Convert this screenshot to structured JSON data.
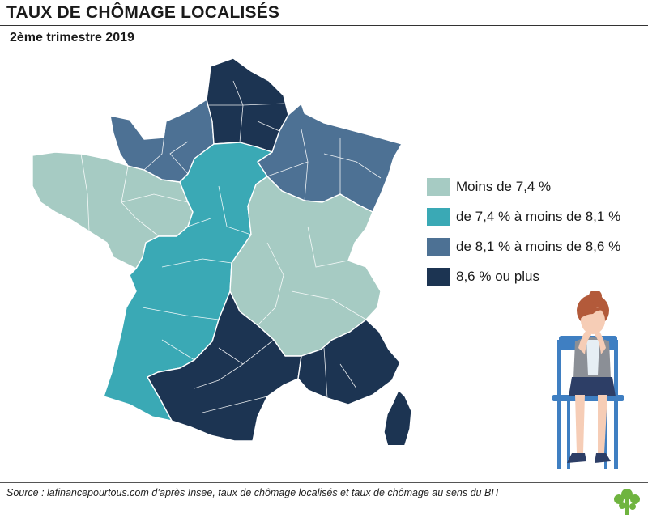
{
  "header": {
    "title": "TAUX DE CHÔMAGE LOCALISÉS",
    "subtitle": "2ème trimestre 2019"
  },
  "legend": {
    "items": [
      {
        "label": "Moins de 7,4 %",
        "color": "#a6cbc3"
      },
      {
        "label": "de 7,4 % à moins de 8,1 %",
        "color": "#3aa9b5"
      },
      {
        "label": "de 8,1 % à moins de 8,6 %",
        "color": "#4d7194"
      },
      {
        "label": "8,6 % ou plus",
        "color": "#1c3452"
      }
    ]
  },
  "map": {
    "region": "France métropolitaine",
    "zones": [
      {
        "area": "Hauts-de-France",
        "class": 3
      },
      {
        "area": "Normandie",
        "class": 2
      },
      {
        "area": "Grand Est",
        "class": 2
      },
      {
        "area": "Bretagne",
        "class": 0
      },
      {
        "area": "Pays de la Loire",
        "class": 0
      },
      {
        "area": "Centre / Nouvelle-Aquitaine ouest",
        "class": 1
      },
      {
        "area": "Bourgogne / Auvergne-Rhône-Alpes",
        "class": 0
      },
      {
        "area": "Occitanie",
        "class": 3
      },
      {
        "area": "Provence-Alpes-Côte d'Azur",
        "class": 3
      },
      {
        "area": "Corse",
        "class": 3
      }
    ]
  },
  "footer": {
    "source": "Source : lafinancepourtous.com d’après Insee, taux de chômage localisés et taux de chômage au sens du BIT"
  },
  "colors": {
    "border": "#ffffff",
    "skin": "#f6cdb6",
    "hair": "#b35a3a",
    "chair": "#3f7fc2",
    "vest": "#8b8f96",
    "shirt": "#e6eef4",
    "skirt": "#2d3e66",
    "logo": "#6fb43f"
  }
}
